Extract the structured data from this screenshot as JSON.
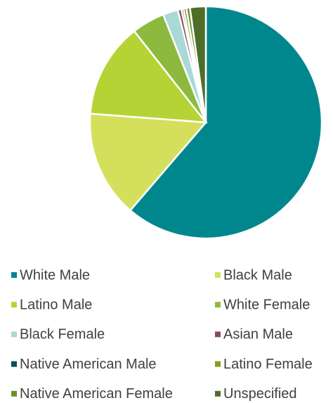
{
  "chart_data": {
    "type": "pie",
    "categories": [
      "White Male",
      "Black Male",
      "Latino Male",
      "White Female",
      "Black Female",
      "Asian Male",
      "Native American Male",
      "Latino Female",
      "Native American Female",
      "Unspecified"
    ],
    "values": [
      61.3,
      14.9,
      13.2,
      4.6,
      2.1,
      0.5,
      0.3,
      0.4,
      0.5,
      2.2
    ],
    "colors": [
      "#00878e",
      "#d4e05c",
      "#b6d336",
      "#8dba3e",
      "#a9d9d6",
      "#8c4b57",
      "#0b4e5a",
      "#8a9b1e",
      "#6b8f25",
      "#4d6d29"
    ],
    "legend": "bottom"
  }
}
